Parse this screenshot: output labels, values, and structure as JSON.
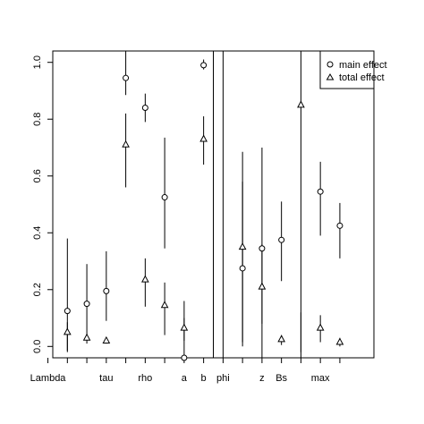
{
  "chart_data": {
    "type": "scatter",
    "categories": [
      "Lambda",
      "",
      "",
      "tau",
      "",
      "rho",
      "",
      "a",
      "b",
      "phi",
      "",
      "z",
      "Bs",
      "",
      "max",
      ""
    ],
    "ylim": [
      -0.04,
      1.04
    ],
    "yticks": [
      0.0,
      0.2,
      0.4,
      0.6,
      0.8,
      1.0
    ],
    "ytick_labels": [
      "0.0",
      "0.2",
      "0.4",
      "0.6",
      "0.8",
      "1.0"
    ],
    "legend": {
      "position": "top-right",
      "entries": [
        "main effect",
        "total effect"
      ]
    },
    "separator_after_categories": [
      8
    ],
    "series": [
      {
        "name": "main effect",
        "marker": "circle",
        "points": [
          {
            "category": 1,
            "value": 0.125,
            "low": -0.02,
            "high": 0.38
          },
          {
            "category": 2,
            "value": 0.15,
            "low": 0.03,
            "high": 0.29
          },
          {
            "category": 3,
            "value": 0.195,
            "low": 0.09,
            "high": 0.335
          },
          {
            "category": 4,
            "value": 0.945,
            "low": 0.885,
            "high": 1.04
          },
          {
            "category": 5,
            "value": 0.84,
            "low": 0.79,
            "high": 0.89
          },
          {
            "category": 6,
            "value": 0.525,
            "low": 0.345,
            "high": 0.735
          },
          {
            "category": 7,
            "value": -0.04,
            "low": -0.04,
            "high": 0.16
          },
          {
            "category": 8,
            "value": 0.99,
            "low": 0.975,
            "high": 1.01
          },
          {
            "category": 9,
            "value": null,
            "low": -0.04,
            "high": 1.04
          },
          {
            "category": 10,
            "value": 0.275,
            "low": 0.015,
            "high": 0.685
          },
          {
            "category": 11,
            "value": 0.345,
            "low": 0.08,
            "high": 0.7
          },
          {
            "category": 12,
            "value": 0.375,
            "low": 0.23,
            "high": 0.51
          },
          {
            "category": 13,
            "value": null,
            "low": -0.04,
            "high": 0.12
          },
          {
            "category": 14,
            "value": 0.545,
            "low": 0.39,
            "high": 0.65
          },
          {
            "category": 15,
            "value": 0.425,
            "low": 0.31,
            "high": 0.505
          }
        ]
      },
      {
        "name": "total effect",
        "marker": "triangle",
        "points": [
          {
            "category": 1,
            "value": 0.05,
            "low": -0.015,
            "high": 0.085
          },
          {
            "category": 2,
            "value": 0.03,
            "low": 0.01,
            "high": 0.045
          },
          {
            "category": 3,
            "value": 0.02,
            "low": 0.01,
            "high": 0.03
          },
          {
            "category": 4,
            "value": 0.71,
            "low": 0.56,
            "high": 0.82
          },
          {
            "category": 5,
            "value": 0.235,
            "low": 0.14,
            "high": 0.31
          },
          {
            "category": 6,
            "value": 0.145,
            "low": 0.04,
            "high": 0.225
          },
          {
            "category": 7,
            "value": 0.065,
            "low": 0.02,
            "high": 0.1
          },
          {
            "category": 8,
            "value": 0.73,
            "low": 0.64,
            "high": 0.81
          },
          {
            "category": 10,
            "value": 0.35,
            "low": 0.0,
            "high": 0.58
          },
          {
            "category": 11,
            "value": 0.21,
            "low": -0.04,
            "high": 0.36
          },
          {
            "category": 12,
            "value": 0.025,
            "low": 0.005,
            "high": 0.04
          },
          {
            "category": 13,
            "value": 0.85,
            "low": -0.02,
            "high": 1.04
          },
          {
            "category": 14,
            "value": 0.065,
            "low": 0.015,
            "high": 0.11
          },
          {
            "category": 15,
            "value": 0.015,
            "low": 0.0,
            "high": 0.03
          }
        ]
      }
    ]
  }
}
